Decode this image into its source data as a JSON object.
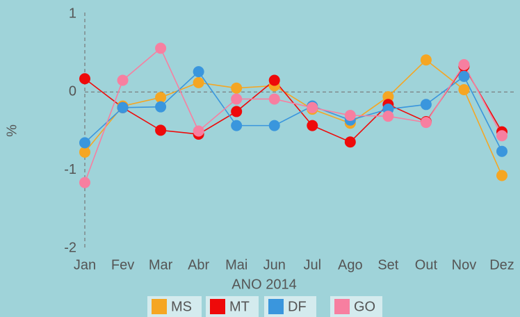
{
  "chart_data": {
    "type": "line",
    "x_label": "ANO 2014",
    "y_label": "%",
    "categories": [
      "Jan",
      "Fev",
      "Mar",
      "Abr",
      "Mai",
      "Jun",
      "Jul",
      "Ago",
      "Set",
      "Out",
      "Nov",
      "Dez"
    ],
    "series": [
      {
        "name": "MS",
        "color": "#f5a623",
        "values": [
          -0.77,
          -0.18,
          -0.07,
          0.12,
          0.05,
          0.08,
          -0.22,
          -0.4,
          -0.06,
          0.41,
          0.03,
          -1.07
        ]
      },
      {
        "name": "MT",
        "color": "#ee0a0a",
        "values": [
          0.17,
          -0.2,
          -0.49,
          -0.54,
          -0.25,
          0.15,
          -0.43,
          -0.64,
          -0.16,
          -0.38,
          0.33,
          -0.51
        ]
      },
      {
        "name": "DF",
        "color": "#3a96dd",
        "values": [
          -0.65,
          -0.2,
          -0.19,
          0.26,
          -0.43,
          -0.43,
          -0.18,
          -0.36,
          -0.22,
          -0.16,
          0.2,
          -0.76
        ]
      },
      {
        "name": "GO",
        "color": "#f77fa0",
        "values": [
          -1.16,
          0.15,
          0.56,
          -0.5,
          -0.09,
          -0.09,
          -0.2,
          -0.3,
          -0.31,
          -0.39,
          0.35,
          -0.56
        ]
      }
    ],
    "ylim": [
      -2,
      1
    ],
    "yticks": [
      -2,
      -1,
      0,
      1
    ]
  }
}
